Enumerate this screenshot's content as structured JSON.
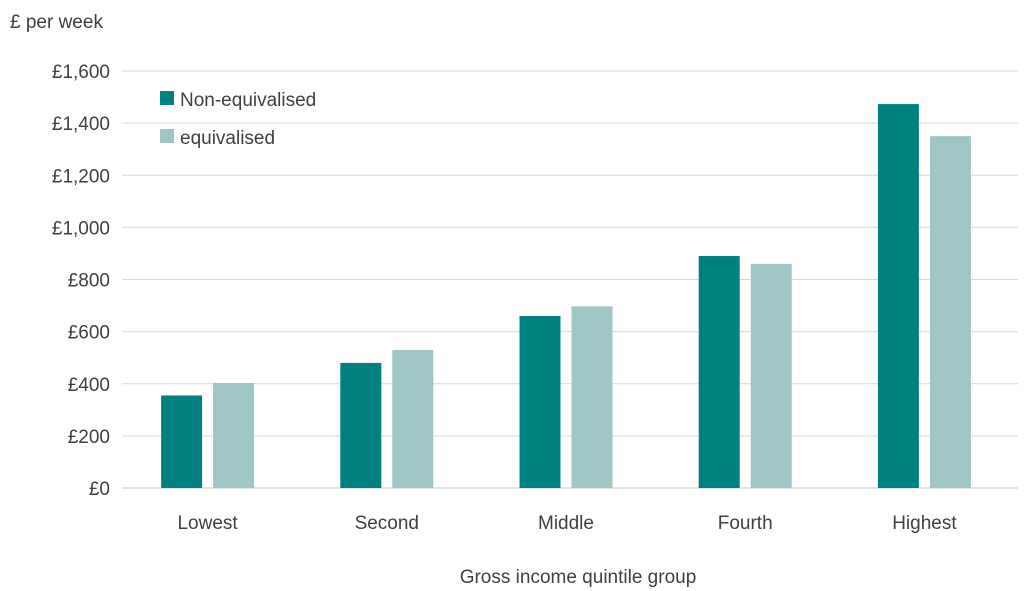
{
  "chart_data": {
    "type": "bar",
    "title": "",
    "ylabel": "£ per week",
    "xlabel": "Gross income quintile group",
    "categories": [
      "Lowest",
      "Second",
      "Middle",
      "Fourth",
      "Highest"
    ],
    "series": [
      {
        "name": "Non-equivalised",
        "color": "#008080",
        "values": [
          355,
          480,
          660,
          890,
          1473
        ]
      },
      {
        "name": "equivalised",
        "color": "#9dc6c5",
        "values": [
          403,
          530,
          697,
          860,
          1350
        ]
      }
    ],
    "ylim": [
      0,
      1600
    ],
    "yticks": [
      0,
      200,
      400,
      600,
      800,
      1000,
      1200,
      1400,
      1600
    ],
    "ytick_labels": [
      "£0",
      "£200",
      "£400",
      "£600",
      "£800",
      "£1,000",
      "£1,200",
      "£1,400",
      "£1,600"
    ],
    "grid": true,
    "legend_position": "top-left"
  }
}
